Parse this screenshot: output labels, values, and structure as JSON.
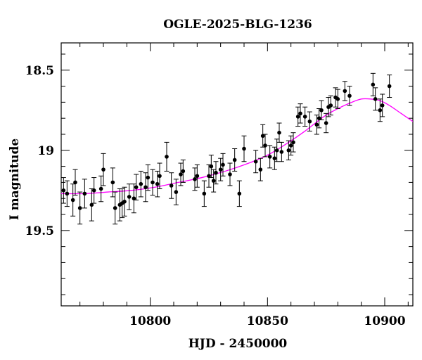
{
  "chart_data": {
    "type": "scatter",
    "title": "OGLE-2025-BLG-1236",
    "xlabel": "HJD - 2450000",
    "ylabel": "I magnitude",
    "xlim": [
      10762,
      10912
    ],
    "ylim": [
      19.97,
      18.33
    ],
    "y_inverted": true,
    "x_major_ticks": [
      10800,
      10850,
      10900
    ],
    "x_tick_labels": [
      "10800",
      "10850",
      "10900"
    ],
    "y_major_ticks": [
      18.5,
      19,
      19.5
    ],
    "y_tick_labels": [
      "18.5",
      "19",
      "19.5"
    ],
    "grid": false,
    "colors": {
      "points": "#000000",
      "model": "#ff00ff"
    },
    "series": [
      {
        "kind": "points_with_errorbars",
        "x": [
          10763,
          10764.5,
          10767,
          10768,
          10770,
          10772,
          10775,
          10776,
          10779,
          10780,
          10784,
          10785,
          10787,
          10788,
          10789,
          10791,
          10793,
          10794,
          10796,
          10798,
          10799,
          10801,
          10803,
          10804,
          10807,
          10809,
          10811,
          10813,
          10814,
          10819,
          10820,
          10823,
          10825,
          10826,
          10827,
          10828,
          10830,
          10831,
          10834,
          10836,
          10838,
          10840,
          10845,
          10847,
          10848,
          10849,
          10851,
          10853,
          10854,
          10855,
          10856,
          10859,
          10860,
          10861,
          10863,
          10864,
          10866,
          10868,
          10871,
          10872,
          10873,
          10875,
          10876,
          10877,
          10879,
          10880,
          10883,
          10885,
          10895,
          10896,
          10898,
          10899,
          10902
        ],
        "y": [
          19.25,
          19.27,
          19.31,
          19.2,
          19.36,
          19.27,
          19.34,
          19.25,
          19.24,
          19.12,
          19.2,
          19.36,
          19.34,
          19.33,
          19.32,
          19.29,
          19.3,
          19.23,
          19.21,
          19.23,
          19.17,
          19.2,
          19.21,
          19.16,
          19.04,
          19.22,
          19.26,
          19.15,
          19.13,
          19.18,
          19.16,
          19.27,
          19.16,
          19.1,
          19.19,
          19.14,
          19.12,
          19.09,
          19.15,
          19.06,
          19.27,
          18.99,
          19.07,
          19.12,
          18.91,
          18.97,
          19.04,
          19.05,
          19.0,
          18.89,
          19.01,
          19.0,
          18.97,
          18.95,
          18.79,
          18.77,
          18.79,
          18.82,
          18.84,
          18.8,
          18.75,
          18.83,
          18.73,
          18.72,
          18.67,
          18.68,
          18.63,
          18.66,
          18.59,
          18.68,
          18.75,
          18.72,
          18.6
        ],
        "yerr": [
          0.08,
          0.08,
          0.1,
          0.08,
          0.1,
          0.09,
          0.1,
          0.08,
          0.08,
          0.1,
          0.09,
          0.1,
          0.1,
          0.09,
          0.09,
          0.08,
          0.09,
          0.08,
          0.08,
          0.09,
          0.08,
          0.08,
          0.08,
          0.08,
          0.09,
          0.08,
          0.08,
          0.07,
          0.07,
          0.07,
          0.07,
          0.08,
          0.07,
          0.07,
          0.07,
          0.07,
          0.07,
          0.07,
          0.07,
          0.07,
          0.08,
          0.08,
          0.07,
          0.07,
          0.07,
          0.07,
          0.07,
          0.07,
          0.07,
          0.06,
          0.06,
          0.06,
          0.06,
          0.06,
          0.06,
          0.06,
          0.06,
          0.06,
          0.06,
          0.06,
          0.06,
          0.06,
          0.06,
          0.06,
          0.06,
          0.06,
          0.06,
          0.06,
          0.07,
          0.07,
          0.07,
          0.07,
          0.07
        ]
      },
      {
        "kind": "model_curve",
        "x": [
          10762,
          10772,
          10782,
          10792,
          10802,
          10812,
          10822,
          10832,
          10842,
          10850,
          10858,
          10866,
          10874,
          10880,
          10886,
          10890,
          10894,
          10898,
          10902,
          10907,
          10912
        ],
        "y": [
          19.27,
          19.27,
          19.26,
          19.25,
          19.23,
          19.2,
          19.17,
          19.13,
          19.08,
          19.03,
          18.96,
          18.88,
          18.79,
          18.74,
          18.7,
          18.68,
          18.68,
          18.69,
          18.72,
          18.77,
          18.82
        ]
      }
    ]
  }
}
